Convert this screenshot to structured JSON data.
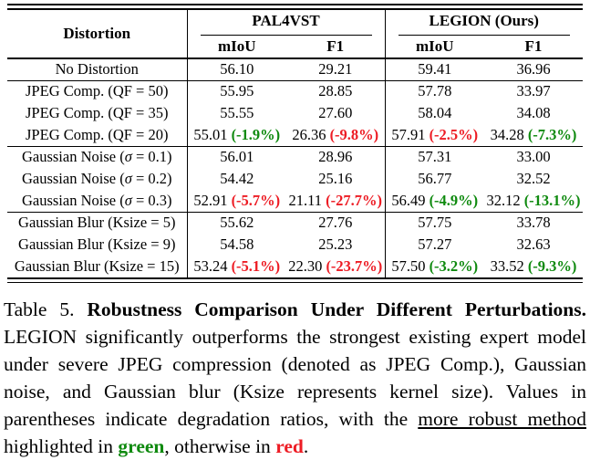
{
  "colors": {
    "green": "#0f8a0f",
    "red": "#ed1c24"
  },
  "table": {
    "columns": {
      "distortion": "Distortion",
      "groups": [
        "PAL4VST",
        "LEGION (Ours)"
      ],
      "metrics": [
        "mIoU",
        "F1",
        "mIoU",
        "F1"
      ]
    },
    "group_start_rows": [
      1,
      4,
      7
    ],
    "rows": [
      {
        "label": "No Distortion",
        "cells": [
          {
            "v": "56.10"
          },
          {
            "v": "29.21"
          },
          {
            "v": "59.41"
          },
          {
            "v": "36.96"
          }
        ]
      },
      {
        "label": "JPEG Comp. (QF = 50)",
        "cells": [
          {
            "v": "55.95"
          },
          {
            "v": "28.85"
          },
          {
            "v": "57.78"
          },
          {
            "v": "33.97"
          }
        ]
      },
      {
        "label": "JPEG Comp. (QF = 35)",
        "cells": [
          {
            "v": "55.55"
          },
          {
            "v": "27.60"
          },
          {
            "v": "58.04"
          },
          {
            "v": "34.08"
          }
        ]
      },
      {
        "label": "JPEG Comp. (QF = 20)",
        "cells": [
          {
            "v": "55.01",
            "d": "(-1.9%)",
            "c": "green"
          },
          {
            "v": "26.36",
            "d": "(-9.8%)",
            "c": "red"
          },
          {
            "v": "57.91",
            "d": "(-2.5%)",
            "c": "red"
          },
          {
            "v": "34.28",
            "d": "(-7.3%)",
            "c": "green"
          }
        ]
      },
      {
        "label": "Gaussian Noise (σ = 0.1)",
        "cells": [
          {
            "v": "56.01"
          },
          {
            "v": "28.96"
          },
          {
            "v": "57.31"
          },
          {
            "v": "33.00"
          }
        ]
      },
      {
        "label": "Gaussian Noise (σ = 0.2)",
        "cells": [
          {
            "v": "54.42"
          },
          {
            "v": "25.16"
          },
          {
            "v": "56.77"
          },
          {
            "v": "32.52"
          }
        ]
      },
      {
        "label": "Gaussian Noise (σ = 0.3)",
        "cells": [
          {
            "v": "52.91",
            "d": "(-5.7%)",
            "c": "red"
          },
          {
            "v": "21.11",
            "d": "(-27.7%)",
            "c": "red"
          },
          {
            "v": "56.49",
            "d": "(-4.9%)",
            "c": "green"
          },
          {
            "v": "32.12",
            "d": "(-13.1%)",
            "c": "green"
          }
        ]
      },
      {
        "label": "Gaussian Blur (Ksize = 5)",
        "cells": [
          {
            "v": "55.62"
          },
          {
            "v": "27.76"
          },
          {
            "v": "57.75"
          },
          {
            "v": "33.78"
          }
        ]
      },
      {
        "label": "Gaussian Blur (Ksize = 9)",
        "cells": [
          {
            "v": "54.58"
          },
          {
            "v": "25.23"
          },
          {
            "v": "57.27"
          },
          {
            "v": "32.63"
          }
        ]
      },
      {
        "label": "Gaussian Blur (Ksize = 15)",
        "cells": [
          {
            "v": "53.24",
            "d": "(-5.1%)",
            "c": "red"
          },
          {
            "v": "22.30",
            "d": "(-23.7%)",
            "c": "red"
          },
          {
            "v": "57.50",
            "d": "(-3.2%)",
            "c": "green"
          },
          {
            "v": "33.52",
            "d": "(-9.3%)",
            "c": "green"
          }
        ]
      }
    ]
  },
  "caption": {
    "segments": [
      {
        "text": "Table 5.  ",
        "style": "normal"
      },
      {
        "text": "Robustness Comparison Under Different Perturbations.",
        "style": "bold"
      },
      {
        "text": "  LEGION significantly outperforms the strongest existing expert model under severe JPEG compression (denoted as JPEG Comp.), Gaussian noise, and Gaussian blur (Ksize represents kernel size). Values in parentheses indicate degradation ratios, with the ",
        "style": "normal"
      },
      {
        "text": "more robust method",
        "style": "underline"
      },
      {
        "text": " highlighted in ",
        "style": "normal"
      },
      {
        "text": "green",
        "style": "bold-green"
      },
      {
        "text": ", otherwise in ",
        "style": "normal"
      },
      {
        "text": "red",
        "style": "bold-red"
      },
      {
        "text": ".",
        "style": "normal"
      }
    ]
  }
}
